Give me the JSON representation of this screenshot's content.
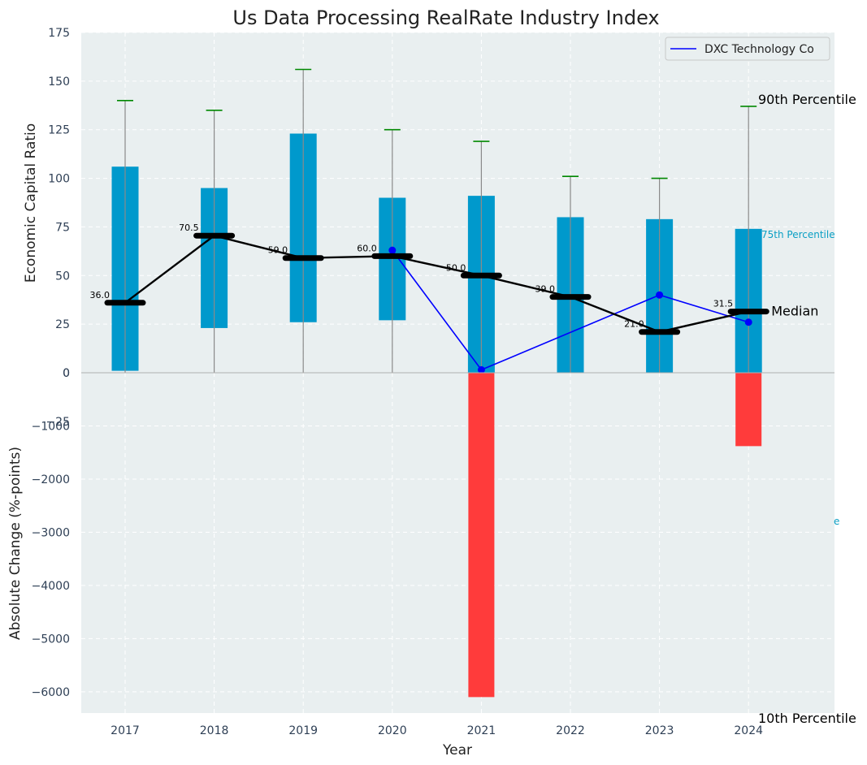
{
  "chart_data": {
    "type": "box",
    "title": "Us Data Processing RealRate Industry Index",
    "xlabel": "Year",
    "ylabel_top": "Economic Capital Ratio",
    "ylabel_bottom": "Absolute Change (%-points)",
    "categories": [
      "2017",
      "2018",
      "2019",
      "2020",
      "2021",
      "2022",
      "2023",
      "2024"
    ],
    "ylim_top": [
      0,
      175
    ],
    "yticks_top": [
      "175",
      "150",
      "125",
      "100",
      "75",
      "50",
      "25",
      "0",
      "−25"
    ],
    "ylim_bottom": [
      -6400,
      0
    ],
    "yticks_bottom": [
      "0",
      "−1000",
      "−2000",
      "−3000",
      "−4000",
      "−5000",
      "−6000"
    ],
    "p10": [
      0,
      0,
      0,
      0,
      0,
      0,
      0,
      0
    ],
    "p25": [
      1,
      23,
      26,
      27,
      -13,
      0,
      0,
      0
    ],
    "median": [
      36.0,
      70.5,
      59.0,
      60.0,
      50.0,
      39.0,
      21.0,
      31.5
    ],
    "median_labels": [
      "36.0",
      "70.5",
      "59.0",
      "60.0",
      "50.0",
      "39.0",
      "21.0",
      "31.5"
    ],
    "p75": [
      106,
      95,
      123,
      90,
      91,
      80,
      79,
      74
    ],
    "p90": [
      140,
      135,
      156,
      125,
      119,
      101,
      100,
      137
    ],
    "company": {
      "name": "DXC Technology Co",
      "years": [
        "2020",
        "2021",
        "2023",
        "2024"
      ],
      "values": [
        63,
        1.5,
        40,
        26
      ]
    },
    "absolute_change": [
      {
        "year": "2021",
        "value": -6100
      },
      {
        "year": "2024",
        "value": -1380
      }
    ],
    "annotations": {
      "p90": "90th Percentile",
      "p75": "75th Percentile",
      "median": "Median",
      "p25_clipped": "e",
      "p10": "10th Percentile"
    },
    "legend_position": "top-right",
    "grid": true
  },
  "colors": {
    "background": "#e9eff0",
    "box": "#0099cc",
    "whisker": "#8a8a8a",
    "cap": "#008800",
    "median_line": "#000000",
    "company_line": "#0000ff",
    "change_bar": "#ff3b3b",
    "tick_text": "#2e3f55",
    "grid": "#ffffff"
  }
}
